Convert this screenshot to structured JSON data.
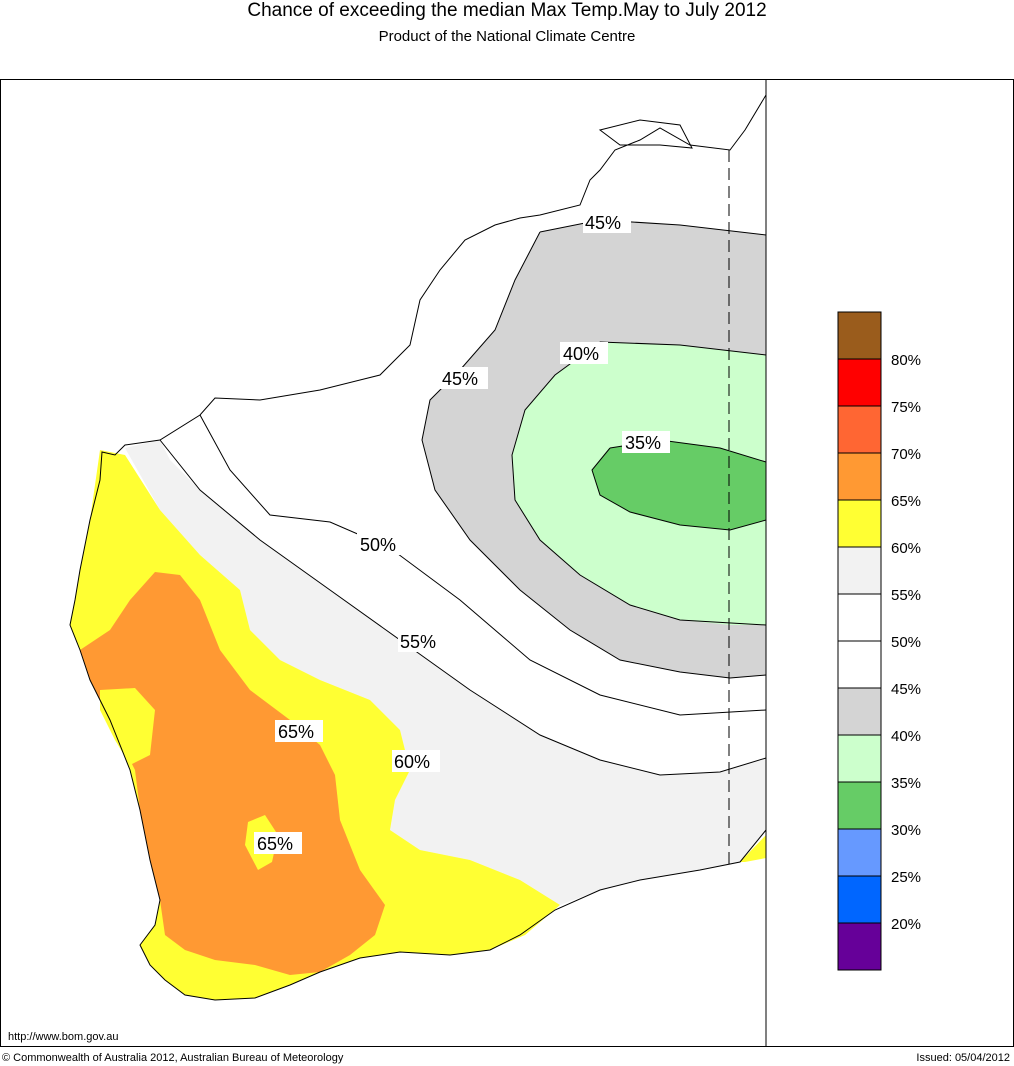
{
  "header": {
    "title": "Chance of exceeding the median Max Temp.May to July 2012",
    "subtitle": "Product of the National Climate Centre"
  },
  "footer": {
    "url": "http://www.bom.gov.au",
    "copyright": "© Commonwealth of Australia 2012, Australian Bureau of Meteorology",
    "issued": "Issued: 05/04/2012"
  },
  "contour_labels": [
    "45%",
    "40%",
    "35%",
    "45%",
    "50%",
    "55%",
    "60%",
    "65%",
    "65%"
  ],
  "legend": {
    "colors": [
      "#9a5c1c",
      "#ff0000",
      "#ff6633",
      "#ff9933",
      "#ffff33",
      "#f2f2f2",
      "#ffffff",
      "#ffffff",
      "#d4d4d4",
      "#ccffcc",
      "#66cc66",
      "#6699ff",
      "#0066ff",
      "#660099"
    ],
    "labels": [
      "80%",
      "75%",
      "70%",
      "65%",
      "60%",
      "55%",
      "50%",
      "45%",
      "40%",
      "35%",
      "30%",
      "25%",
      "20%"
    ]
  }
}
